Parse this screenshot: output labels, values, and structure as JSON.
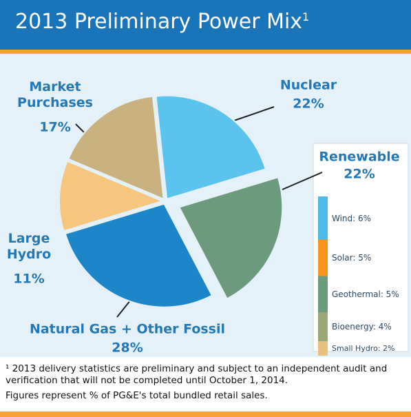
{
  "chart_data": {
    "type": "pie",
    "title": "2013 Preliminary Power Mix",
    "title_marker": "1",
    "categories": [
      "Nuclear",
      "Renewable",
      "Natural Gas + Other Fossil",
      "Large Hydro",
      "Market Purchases"
    ],
    "values": [
      22,
      22,
      28,
      11,
      17
    ],
    "value_labels": [
      "22%",
      "22%",
      "28%",
      "11%",
      "17%"
    ],
    "colors": [
      "#5cc3ee",
      "#6d9a7c",
      "#1d86c9",
      "#f6c57e",
      "#c9b27f"
    ],
    "renewable_breakdown": {
      "labels": [
        "Wind: 6%",
        "Solar: 5%",
        "Geothermal: 5%",
        "Bioenergy: 4%",
        "Small Hydro: 2%"
      ],
      "values": [
        6,
        5,
        5,
        4,
        2
      ],
      "colors": [
        "#4dbbea",
        "#f7941d",
        "#6d9a7c",
        "#9aa877",
        "#e8c27e"
      ]
    },
    "footnotes": [
      "¹ 2013 delivery statistics are preliminary and subject to an independent audit and verification that will not be completed until October 1, 2014.",
      "Figures represent % of PG&E's total bundled retail sales."
    ]
  }
}
